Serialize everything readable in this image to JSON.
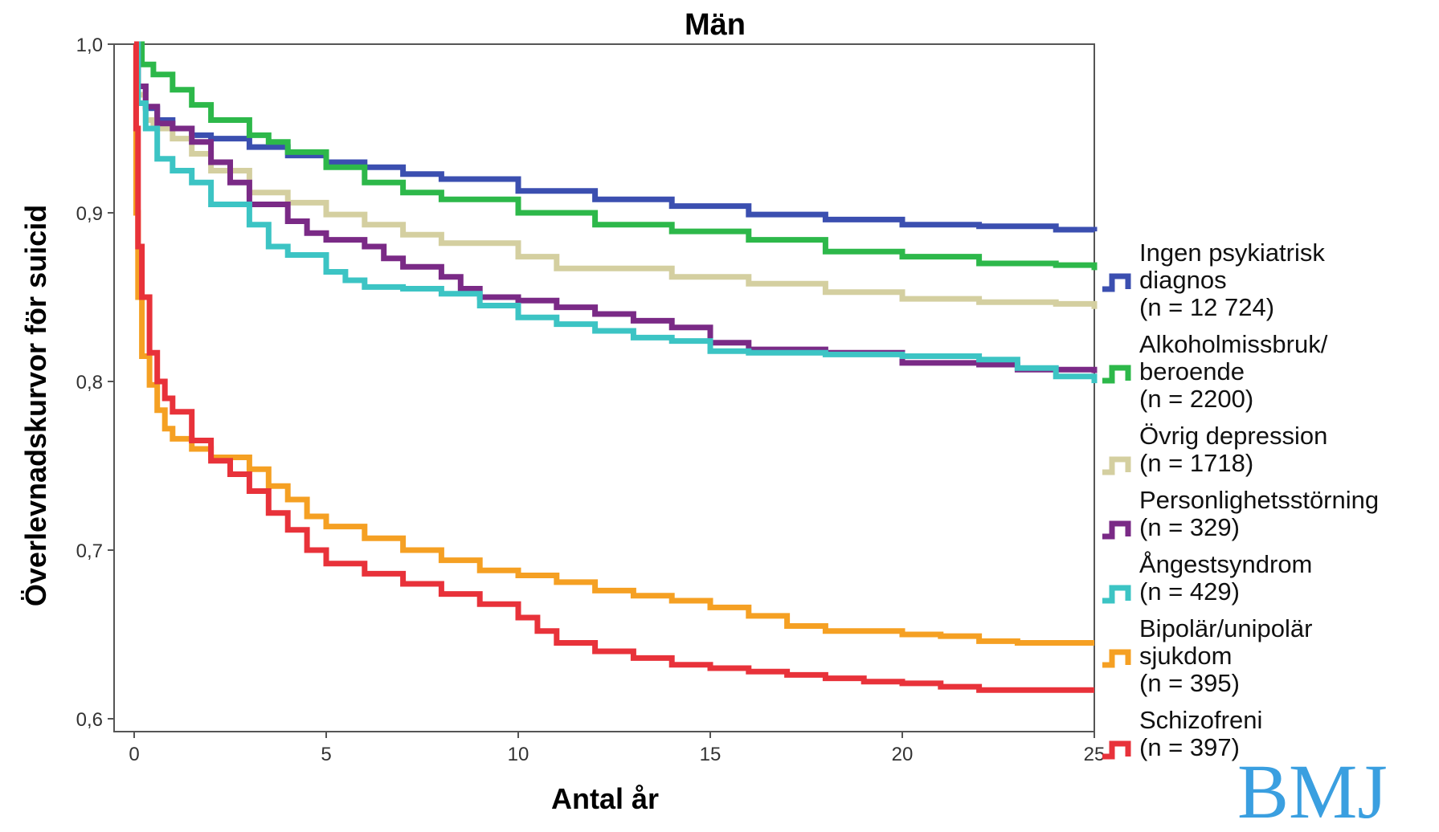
{
  "chart_data": {
    "type": "line",
    "title": "Män",
    "xlabel": "Antal år",
    "ylabel": "Överlevnadskurvor för suicid",
    "xlim": [
      -0.5,
      25
    ],
    "ylim": [
      0.593,
      1.0
    ],
    "xticks": [
      0,
      5,
      10,
      15,
      20,
      25
    ],
    "xtick_labels": [
      "0",
      "5",
      "10",
      "15",
      "20",
      "25"
    ],
    "yticks": [
      0.6,
      0.7,
      0.8,
      0.9,
      1.0
    ],
    "ytick_labels": [
      "0,6",
      "0,7",
      "0,8",
      "0,9",
      "1,0"
    ],
    "grid": false,
    "legend_position": "right",
    "series": [
      {
        "name": "Ingen psykiatrisk diagnos",
        "legend_lines": [
          "Ingen psykiatrisk",
          "diagnos",
          "(n = 12 724)"
        ],
        "color": "#3b4fb0",
        "points": [
          [
            0,
            1.0
          ],
          [
            0.1,
            0.975
          ],
          [
            0.3,
            0.962
          ],
          [
            0.6,
            0.955
          ],
          [
            1,
            0.95
          ],
          [
            1.5,
            0.946
          ],
          [
            2,
            0.944
          ],
          [
            3,
            0.939
          ],
          [
            4,
            0.934
          ],
          [
            5,
            0.93
          ],
          [
            6,
            0.927
          ],
          [
            7,
            0.923
          ],
          [
            8,
            0.92
          ],
          [
            10,
            0.913
          ],
          [
            12,
            0.908
          ],
          [
            14,
            0.904
          ],
          [
            16,
            0.899
          ],
          [
            18,
            0.896
          ],
          [
            20,
            0.893
          ],
          [
            22,
            0.892
          ],
          [
            24,
            0.89
          ],
          [
            25,
            0.889
          ]
        ]
      },
      {
        "name": "Alkoholmissbruk/beroende",
        "legend_lines": [
          "Alkoholmissbruk/",
          "beroende",
          "(n = 2200)"
        ],
        "color": "#2db84a",
        "points": [
          [
            0,
            1.0
          ],
          [
            0.2,
            0.988
          ],
          [
            0.5,
            0.982
          ],
          [
            1,
            0.973
          ],
          [
            1.5,
            0.964
          ],
          [
            2,
            0.955
          ],
          [
            3,
            0.946
          ],
          [
            3.5,
            0.942
          ],
          [
            4,
            0.936
          ],
          [
            5,
            0.927
          ],
          [
            6,
            0.918
          ],
          [
            7,
            0.912
          ],
          [
            8,
            0.908
          ],
          [
            10,
            0.9
          ],
          [
            12,
            0.893
          ],
          [
            14,
            0.889
          ],
          [
            16,
            0.884
          ],
          [
            18,
            0.877
          ],
          [
            20,
            0.874
          ],
          [
            22,
            0.87
          ],
          [
            24,
            0.869
          ],
          [
            25,
            0.866
          ]
        ]
      },
      {
        "name": "Övrig depression",
        "legend_lines": [
          "Övrig depression",
          "(n = 1718)"
        ],
        "color": "#d4cfa0",
        "points": [
          [
            0,
            1.0
          ],
          [
            0.1,
            0.97
          ],
          [
            0.3,
            0.955
          ],
          [
            0.5,
            0.95
          ],
          [
            1,
            0.944
          ],
          [
            1.5,
            0.935
          ],
          [
            2,
            0.925
          ],
          [
            3,
            0.912
          ],
          [
            4,
            0.906
          ],
          [
            5,
            0.899
          ],
          [
            6,
            0.893
          ],
          [
            7,
            0.887
          ],
          [
            8,
            0.882
          ],
          [
            10,
            0.874
          ],
          [
            11,
            0.867
          ],
          [
            14,
            0.862
          ],
          [
            16,
            0.858
          ],
          [
            18,
            0.853
          ],
          [
            20,
            0.849
          ],
          [
            22,
            0.847
          ],
          [
            24,
            0.846
          ],
          [
            25,
            0.843
          ]
        ]
      },
      {
        "name": "Personlighetsstörning",
        "legend_lines": [
          "Personlighetsstörning",
          "(n = 329)"
        ],
        "color": "#7a2a86",
        "points": [
          [
            0,
            1.0
          ],
          [
            0.1,
            0.975
          ],
          [
            0.3,
            0.963
          ],
          [
            0.6,
            0.953
          ],
          [
            1,
            0.95
          ],
          [
            1.5,
            0.942
          ],
          [
            2,
            0.93
          ],
          [
            2.5,
            0.918
          ],
          [
            3,
            0.905
          ],
          [
            4,
            0.895
          ],
          [
            4.5,
            0.888
          ],
          [
            5,
            0.884
          ],
          [
            6,
            0.88
          ],
          [
            6.5,
            0.873
          ],
          [
            7,
            0.868
          ],
          [
            8,
            0.862
          ],
          [
            8.5,
            0.855
          ],
          [
            9,
            0.85
          ],
          [
            10,
            0.848
          ],
          [
            11,
            0.844
          ],
          [
            12,
            0.84
          ],
          [
            13,
            0.836
          ],
          [
            14,
            0.832
          ],
          [
            15,
            0.823
          ],
          [
            16,
            0.819
          ],
          [
            18,
            0.817
          ],
          [
            19.5,
            0.817
          ],
          [
            20,
            0.811
          ],
          [
            22,
            0.81
          ],
          [
            23,
            0.807
          ],
          [
            25,
            0.805
          ]
        ]
      },
      {
        "name": "Ångestsyndrom",
        "legend_lines": [
          "Ångestsyndrom",
          "(n = 429)"
        ],
        "color": "#3cc4c4",
        "points": [
          [
            0,
            1.0
          ],
          [
            0.1,
            0.965
          ],
          [
            0.3,
            0.95
          ],
          [
            0.6,
            0.932
          ],
          [
            1,
            0.925
          ],
          [
            1.5,
            0.918
          ],
          [
            2,
            0.905
          ],
          [
            3,
            0.893
          ],
          [
            3.5,
            0.88
          ],
          [
            4,
            0.875
          ],
          [
            5,
            0.865
          ],
          [
            5.5,
            0.86
          ],
          [
            6,
            0.856
          ],
          [
            7,
            0.855
          ],
          [
            8,
            0.852
          ],
          [
            9,
            0.845
          ],
          [
            10,
            0.838
          ],
          [
            11,
            0.834
          ],
          [
            12,
            0.83
          ],
          [
            13,
            0.826
          ],
          [
            14,
            0.824
          ],
          [
            15,
            0.818
          ],
          [
            16,
            0.817
          ],
          [
            18,
            0.816
          ],
          [
            20,
            0.815
          ],
          [
            22,
            0.813
          ],
          [
            23,
            0.808
          ],
          [
            24,
            0.803
          ],
          [
            25,
            0.799
          ]
        ]
      },
      {
        "name": "Bipolär/unipolär sjukdom",
        "legend_lines": [
          "Bipolär/unipolär",
          "sjukdom",
          "(n = 395)"
        ],
        "color": "#f5a023",
        "points": [
          [
            0,
            1.0
          ],
          [
            0.05,
            0.9
          ],
          [
            0.1,
            0.85
          ],
          [
            0.2,
            0.815
          ],
          [
            0.4,
            0.798
          ],
          [
            0.6,
            0.783
          ],
          [
            0.8,
            0.772
          ],
          [
            1,
            0.766
          ],
          [
            1.5,
            0.76
          ],
          [
            2,
            0.755
          ],
          [
            3,
            0.748
          ],
          [
            3.5,
            0.738
          ],
          [
            4,
            0.73
          ],
          [
            4.5,
            0.72
          ],
          [
            5,
            0.714
          ],
          [
            6,
            0.707
          ],
          [
            7,
            0.7
          ],
          [
            8,
            0.694
          ],
          [
            9,
            0.688
          ],
          [
            10,
            0.685
          ],
          [
            11,
            0.681
          ],
          [
            12,
            0.676
          ],
          [
            13,
            0.673
          ],
          [
            14,
            0.67
          ],
          [
            15,
            0.666
          ],
          [
            16,
            0.661
          ],
          [
            17,
            0.655
          ],
          [
            18,
            0.652
          ],
          [
            19,
            0.652
          ],
          [
            20,
            0.65
          ],
          [
            21,
            0.649
          ],
          [
            22,
            0.646
          ],
          [
            23,
            0.645
          ],
          [
            25,
            0.645
          ]
        ]
      },
      {
        "name": "Schizofreni",
        "legend_lines": [
          "Schizofreni",
          "(n = 397)"
        ],
        "color": "#e8323a",
        "points": [
          [
            0,
            1.0
          ],
          [
            0.05,
            0.95
          ],
          [
            0.1,
            0.88
          ],
          [
            0.2,
            0.85
          ],
          [
            0.4,
            0.817
          ],
          [
            0.6,
            0.8
          ],
          [
            0.8,
            0.79
          ],
          [
            1,
            0.782
          ],
          [
            1.5,
            0.765
          ],
          [
            2,
            0.753
          ],
          [
            2.5,
            0.745
          ],
          [
            3,
            0.735
          ],
          [
            3.5,
            0.722
          ],
          [
            4,
            0.712
          ],
          [
            4.5,
            0.7
          ],
          [
            5,
            0.692
          ],
          [
            6,
            0.686
          ],
          [
            7,
            0.68
          ],
          [
            8,
            0.674
          ],
          [
            9,
            0.668
          ],
          [
            10,
            0.66
          ],
          [
            10.5,
            0.652
          ],
          [
            11,
            0.645
          ],
          [
            12,
            0.64
          ],
          [
            13,
            0.636
          ],
          [
            14,
            0.632
          ],
          [
            15,
            0.63
          ],
          [
            16,
            0.628
          ],
          [
            17,
            0.626
          ],
          [
            18,
            0.624
          ],
          [
            19,
            0.622
          ],
          [
            20,
            0.621
          ],
          [
            21,
            0.619
          ],
          [
            22,
            0.617
          ],
          [
            25,
            0.617
          ]
        ]
      }
    ]
  },
  "watermark": {
    "text": "BMJ",
    "color": "#3a9fe0"
  }
}
